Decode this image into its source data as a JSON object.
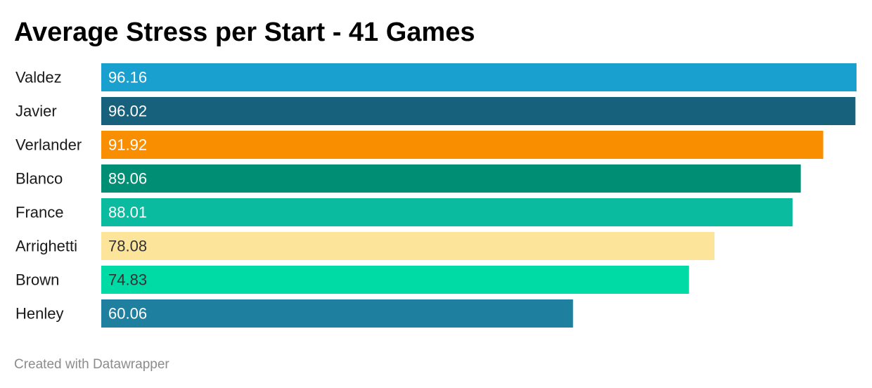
{
  "chart_data": {
    "type": "bar",
    "orientation": "horizontal",
    "title": "Average Stress per Start - 41 Games",
    "categories": [
      "Valdez",
      "Javier",
      "Verlander",
      "Blanco",
      "France",
      "Arrighetti",
      "Brown",
      "Henley"
    ],
    "values": [
      96.16,
      96.02,
      91.92,
      89.06,
      88.01,
      78.08,
      74.83,
      60.06
    ],
    "value_labels": [
      "96.16",
      "96.02",
      "91.92",
      "89.06",
      "88.01",
      "78.08",
      "74.83",
      "60.06"
    ],
    "colors": [
      "#1aa0cf",
      "#17617c",
      "#f98e00",
      "#008f75",
      "#0bbba0",
      "#fde49b",
      "#00dba6",
      "#1f7f9f"
    ],
    "label_colors": [
      "#ffffff",
      "#ffffff",
      "#ffffff",
      "#ffffff",
      "#ffffff",
      "#333333",
      "#333333",
      "#ffffff"
    ],
    "xlim": [
      0,
      96.16
    ],
    "grid": false,
    "legend": "none"
  },
  "footer": {
    "credit": "Created with Datawrapper"
  }
}
